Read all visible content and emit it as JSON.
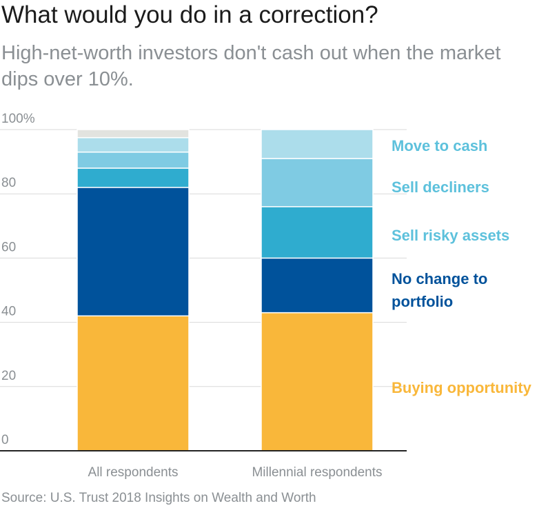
{
  "title": "What would you do in a correction?",
  "subtitle": "High-net-worth investors don't cash out when the market dips over 10%.",
  "source": "Source: U.S. Trust 2018 Insights on Wealth and Worth",
  "colors": {
    "buying_opportunity": "#F9B73A",
    "no_change": "#00529B",
    "sell_risky": "#2FACCF",
    "sell_decliners": "#7FCBE3",
    "move_to_cash": "#ACDDEB",
    "other": "#E2E3DF",
    "axis": "#222222",
    "tick_text": "#8a8f93",
    "legend_light": "#5DC1DC"
  },
  "chart_data": {
    "type": "bar",
    "stacked": true,
    "categories": [
      "All respondents",
      "Millennial respondents"
    ],
    "ylim": [
      0,
      100
    ],
    "yticks": [
      "0",
      "20",
      "40",
      "60",
      "80",
      "100%"
    ],
    "ytick_values": [
      0,
      20,
      40,
      60,
      80,
      100
    ],
    "grid": true,
    "legend_placement": "right",
    "series": [
      {
        "name": "Buying opportunity",
        "values": [
          42,
          43
        ],
        "color_key": "buying_opportunity"
      },
      {
        "name": "No change to portfolio",
        "values": [
          40,
          17
        ],
        "color_key": "no_change"
      },
      {
        "name": "Sell risky assets",
        "values": [
          6,
          16
        ],
        "color_key": "sell_risky"
      },
      {
        "name": "Sell decliners",
        "values": [
          5,
          15
        ],
        "color_key": "sell_decliners"
      },
      {
        "name": "Move to cash",
        "values": [
          4.5,
          9
        ],
        "color_key": "move_to_cash"
      },
      {
        "name": "",
        "values": [
          2.5,
          0
        ],
        "color_key": "other"
      }
    ],
    "legend": [
      {
        "lines": [
          "Move to cash"
        ],
        "color_key": "legend_light"
      },
      {
        "lines": [
          "Sell decliners"
        ],
        "color_key": "legend_light"
      },
      {
        "lines": [
          "Sell risky assets"
        ],
        "color_key": "legend_light"
      },
      {
        "lines": [
          "No change to",
          "portfolio"
        ],
        "color_key": "no_change"
      },
      {
        "lines": [
          "Buying opportunity"
        ],
        "color_key": "buying_opportunity"
      }
    ]
  }
}
